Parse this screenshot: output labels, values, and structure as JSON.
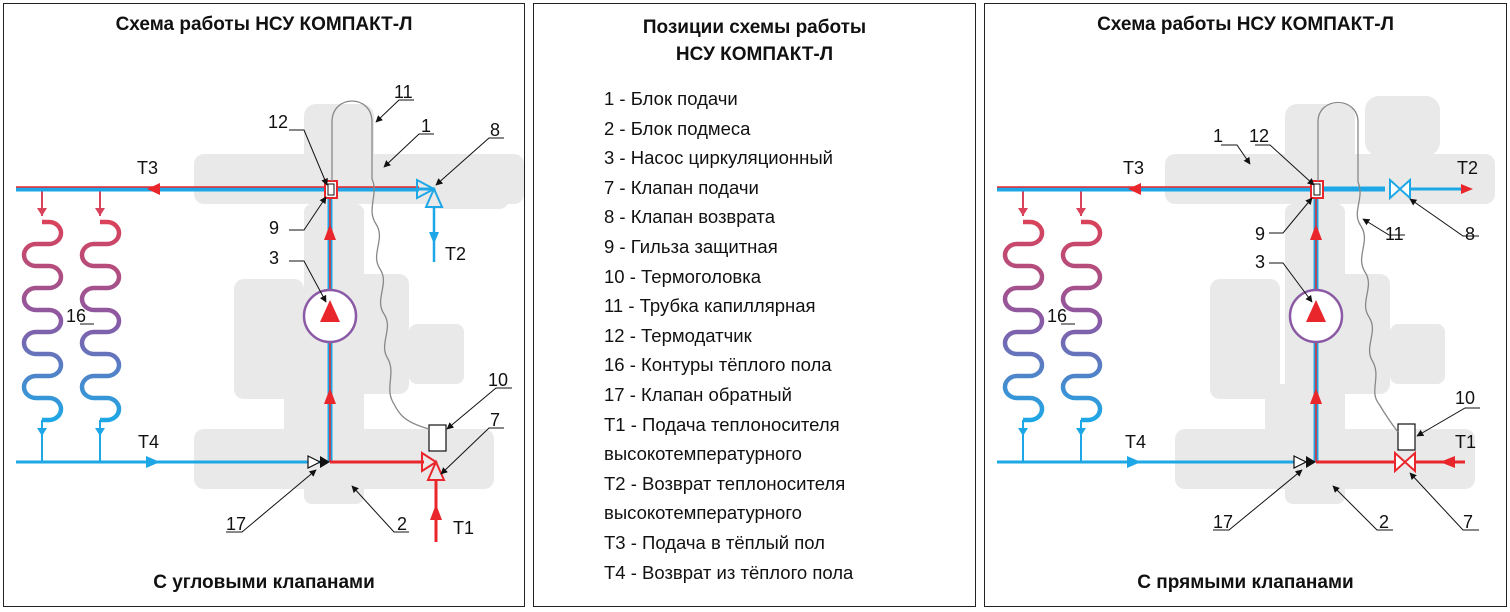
{
  "left_panel": {
    "title": "Схема работы НСУ КОМПАКТ-Л",
    "footer": "С угловыми клапанами",
    "labels": {
      "n1": "1",
      "n2": "2",
      "n3": "3",
      "n7": "7",
      "n8": "8",
      "n9": "9",
      "n10": "10",
      "n11": "11",
      "n12": "12",
      "n16": "16",
      "n17": "17",
      "t1": "Т1",
      "t2": "Т2",
      "t3": "Т3",
      "t4": "Т4"
    }
  },
  "middle_panel": {
    "title_line1": "Позиции схемы работы",
    "title_line2": "НСУ КОМПАКТ-Л",
    "items": [
      "1 - Блок подачи",
      "2 - Блок подмеса",
      "3 - Насос циркуляционный",
      "7 - Клапан подачи",
      "8 - Клапан возврата",
      "9 - Гильза защитная",
      "10 - Термоголовка",
      "11 - Трубка капиллярная",
      "12 - Термодатчик",
      "16 - Контуры тёплого пола",
      "17 - Клапан обратный",
      "Т1 - Подача теплоносителя",
      "высокотемпературного",
      "Т2 - Возврат теплоносителя",
      "высокотемпературного",
      "Т3 - Подача в тёплый пол",
      "Т4 - Возврат из тёплого пола"
    ]
  },
  "right_panel": {
    "title": "Схема работы НСУ КОМПАКТ-Л",
    "footer": "С прямыми клапанами",
    "labels": {
      "n1": "1",
      "n2": "2",
      "n3": "3",
      "n7": "7",
      "n8": "8",
      "n9": "9",
      "n10": "10",
      "n11": "11",
      "n12": "12",
      "n16": "16",
      "n17": "17",
      "t1": "Т1",
      "t2": "Т2",
      "t3": "Т3",
      "t4": "Т4"
    }
  },
  "colors": {
    "supply": "#e8262b",
    "return": "#1ea7e6",
    "mixed": "#8a5aa6",
    "body_shadow": "#e9e9e9",
    "line": "#111111"
  }
}
